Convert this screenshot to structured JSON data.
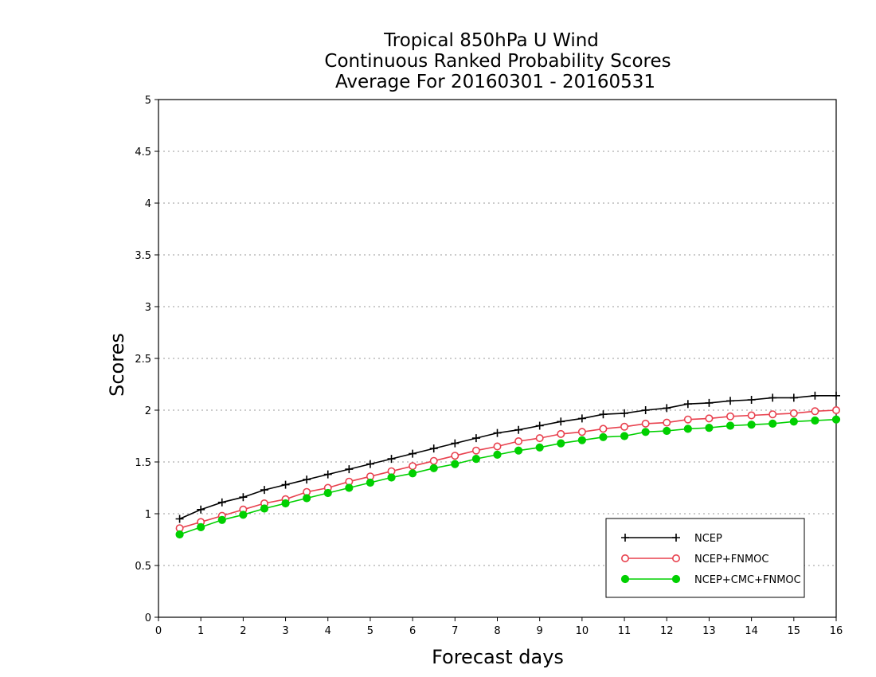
{
  "chart_data": {
    "type": "line",
    "title": [
      "Tropical 850hPa U Wind",
      "Continuous Ranked Probability Scores",
      "Average For 20160301 - 20160531"
    ],
    "xlabel": "Forecast days",
    "ylabel": "Scores",
    "xlim": [
      0,
      16
    ],
    "ylim": [
      0,
      5
    ],
    "xticks": [
      "0",
      "1",
      "2",
      "3",
      "4",
      "5",
      "6",
      "7",
      "8",
      "9",
      "10",
      "11",
      "12",
      "13",
      "14",
      "15",
      "16"
    ],
    "yticks": [
      "0",
      "0.5",
      "1",
      "1.5",
      "2",
      "2.5",
      "3",
      "3.5",
      "4",
      "4.5",
      "5"
    ],
    "grid": "horizontal dotted",
    "legend_position": "bottom-right",
    "x": [
      0.5,
      1,
      1.5,
      2,
      2.5,
      3,
      3.5,
      4,
      4.5,
      5,
      5.5,
      6,
      6.5,
      7,
      7.5,
      8,
      8.5,
      9,
      9.5,
      10,
      10.5,
      11,
      11.5,
      12,
      12.5,
      13,
      13.5,
      14,
      14.5,
      15,
      15.5,
      16
    ],
    "series": [
      {
        "name": "NCEP",
        "color": "#000000",
        "marker": "plus",
        "values": [
          0.95,
          1.04,
          1.11,
          1.16,
          1.23,
          1.28,
          1.33,
          1.38,
          1.43,
          1.48,
          1.53,
          1.58,
          1.63,
          1.68,
          1.73,
          1.78,
          1.81,
          1.85,
          1.89,
          1.92,
          1.96,
          1.97,
          2.0,
          2.02,
          2.06,
          2.07,
          2.09,
          2.1,
          2.12,
          2.12,
          2.14,
          2.14
        ]
      },
      {
        "name": "NCEP+FNMOC",
        "color": "#e8414e",
        "marker": "open-circle",
        "values": [
          0.86,
          0.92,
          0.98,
          1.04,
          1.1,
          1.14,
          1.21,
          1.25,
          1.31,
          1.36,
          1.41,
          1.46,
          1.51,
          1.56,
          1.61,
          1.65,
          1.7,
          1.73,
          1.77,
          1.79,
          1.82,
          1.84,
          1.87,
          1.88,
          1.91,
          1.92,
          1.94,
          1.95,
          1.96,
          1.97,
          1.99,
          2.0
        ]
      },
      {
        "name": "NCEP+CMC+FNMOC",
        "color": "#00d000",
        "marker": "filled-circle",
        "values": [
          0.8,
          0.87,
          0.94,
          0.99,
          1.05,
          1.1,
          1.15,
          1.2,
          1.25,
          1.3,
          1.35,
          1.39,
          1.44,
          1.48,
          1.53,
          1.57,
          1.61,
          1.64,
          1.68,
          1.71,
          1.74,
          1.75,
          1.79,
          1.8,
          1.82,
          1.83,
          1.85,
          1.86,
          1.87,
          1.89,
          1.9,
          1.91
        ]
      }
    ]
  }
}
